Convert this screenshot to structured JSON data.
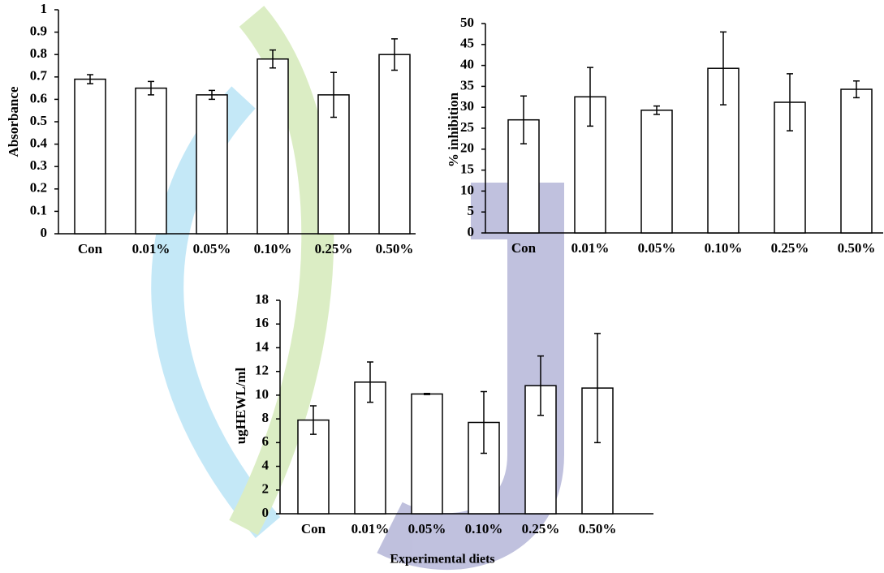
{
  "chart_data": [
    {
      "type": "bar",
      "y_label": "Absorbance",
      "categories": [
        "Con",
        "0.01%",
        "0.05%",
        "0.10%",
        "0.25%",
        "0.50%"
      ],
      "values": [
        0.69,
        0.65,
        0.62,
        0.78,
        0.62,
        0.8
      ],
      "errors": [
        0.02,
        0.03,
        0.02,
        0.04,
        0.1,
        0.07
      ],
      "color": "#ffffff",
      "ylim": [
        0,
        1
      ],
      "yticks": [
        0,
        0.1,
        0.2,
        0.3,
        0.4,
        0.5,
        0.6,
        0.7,
        0.8,
        0.9,
        1
      ]
    },
    {
      "type": "bar",
      "y_label": "% inhibition",
      "categories": [
        "Con",
        "0.01%",
        "0.05%",
        "0.10%",
        "0.25%",
        "0.50%"
      ],
      "values": [
        27,
        32.5,
        29.3,
        39.3,
        31.2,
        34.3
      ],
      "errors": [
        5.7,
        7,
        1,
        8.7,
        6.8,
        2
      ],
      "color": "#ffffff",
      "ylim": [
        0,
        50
      ],
      "yticks": [
        0,
        5,
        10,
        15,
        20,
        25,
        30,
        35,
        40,
        45,
        50
      ]
    },
    {
      "type": "bar",
      "y_label": "ugHEWL/ml",
      "x_label": "Experimental diets",
      "categories": [
        "Con",
        "0.01%",
        "0.05%",
        "0.10%",
        "0.25%",
        "0.50%"
      ],
      "values": [
        7.9,
        11.1,
        10.1,
        7.7,
        10.8,
        10.6
      ],
      "errors": [
        1.2,
        1.7,
        0.05,
        2.6,
        2.5,
        4.6
      ],
      "color": "#ffffff",
      "ylim": [
        0,
        18
      ],
      "yticks": [
        0,
        2,
        4,
        6,
        8,
        10,
        12,
        14,
        16,
        18
      ]
    }
  ]
}
